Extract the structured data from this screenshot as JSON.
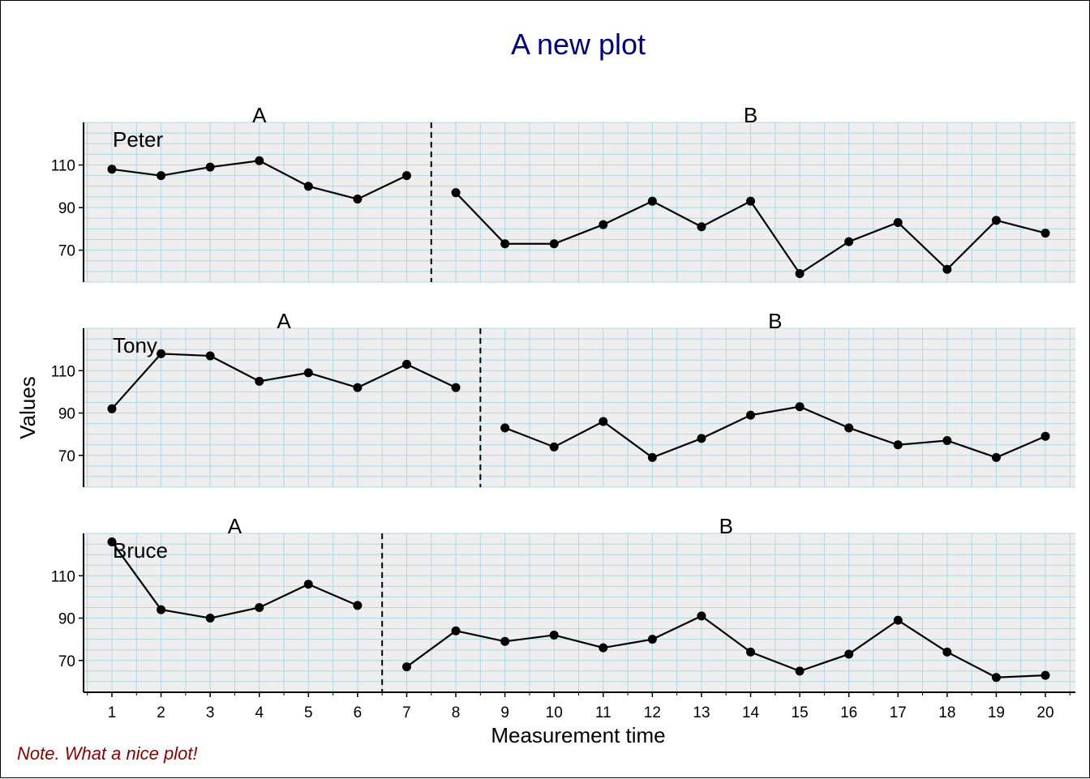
{
  "chart_data": {
    "type": "line",
    "title": "A new plot",
    "xlabel": "Measurement time",
    "ylabel": "Values",
    "note": "Note. What a nice plot!",
    "title_color": "#000080",
    "note_color": "#8B0000",
    "panel_background": "#EEEEEE",
    "grid_color": "#ADD8E6",
    "line_color": "#000000",
    "grid": true,
    "x": [
      1,
      2,
      3,
      4,
      5,
      6,
      7,
      8,
      9,
      10,
      11,
      12,
      13,
      14,
      15,
      16,
      17,
      18,
      19,
      20
    ],
    "xlim": [
      1,
      20
    ],
    "ylim": [
      55,
      130
    ],
    "yticks": [
      70,
      90,
      110
    ],
    "phase_labels": [
      "A",
      "B"
    ],
    "series": [
      {
        "name": "Peter",
        "phase_change_after": 7,
        "values": [
          108,
          105,
          109,
          112,
          100,
          94,
          105,
          97,
          73,
          73,
          82,
          93,
          81,
          93,
          59,
          74,
          83,
          61,
          84,
          78
        ]
      },
      {
        "name": "Tony",
        "phase_change_after": 8,
        "values": [
          92,
          118,
          117,
          105,
          109,
          102,
          113,
          102,
          83,
          74,
          86,
          69,
          78,
          89,
          93,
          83,
          75,
          77,
          69,
          79
        ]
      },
      {
        "name": "Bruce",
        "phase_change_after": 6,
        "values": [
          126,
          94,
          90,
          95,
          106,
          96,
          67,
          84,
          79,
          82,
          76,
          80,
          91,
          74,
          65,
          73,
          89,
          74,
          62,
          63
        ]
      }
    ]
  }
}
